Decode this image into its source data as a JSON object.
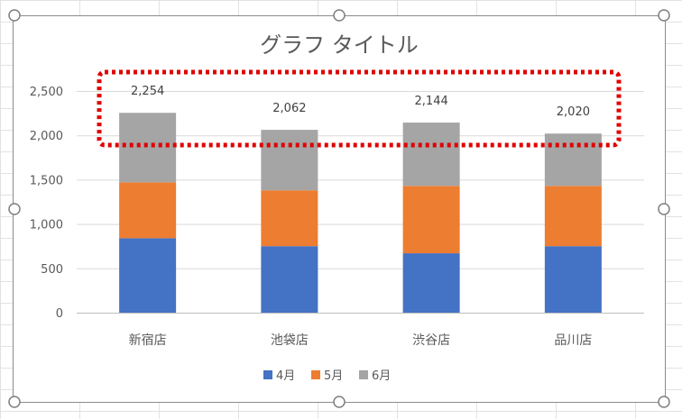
{
  "chart_data": {
    "type": "bar",
    "stacked": true,
    "title": "グラフ タイトル",
    "categories": [
      "新宿店",
      "池袋店",
      "渋谷店",
      "品川店"
    ],
    "series": [
      {
        "name": "4月",
        "color": "#4472C4",
        "values": [
          840,
          750,
          670,
          750
        ]
      },
      {
        "name": "5月",
        "color": "#ED7D31",
        "values": [
          630,
          630,
          760,
          680
        ]
      },
      {
        "name": "6月",
        "color": "#A5A5A5",
        "values": [
          784,
          682,
          714,
          590
        ]
      }
    ],
    "totals": [
      "2,254",
      "2,062",
      "2,144",
      "2,020"
    ],
    "y_ticks": [
      "0",
      "500",
      "1,000",
      "1,500",
      "2,000",
      "2,500"
    ],
    "ylim": [
      0,
      2500
    ],
    "grid": true,
    "legend_position": "bottom",
    "highlight_color": "#E00000"
  }
}
